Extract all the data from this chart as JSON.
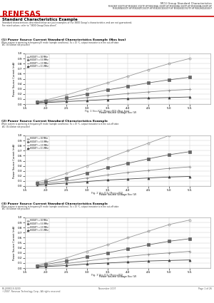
{
  "title_right": "MCU Group Standard Characteristics",
  "subtitle_chips_line1": "M38280F XXXTP-HP M38280C XXXTP-HP M38280AL XXXFP-HP M38280AS XXXTP-HP M38280NA XXXFP-HP",
  "subtitle_chips_line2": "M38280NXXXTP-HP M38280PCXXXTP-HP M38280CBXXXTP-HP M38280DCXXXTP-HP M38280D4XXXHP",
  "section_title": "Standard Characteristics Example",
  "section_desc1": "Standard characteristics described below are just examples of the 3800 Group's characteristics and are not guaranteed.",
  "section_desc2": "For rated values, refer to \"3800 Group Data sheet\".",
  "chart1_title": "(1) Power Source Current Standard Characteristics Example (Nos bus)",
  "chart1_subtitle": "When system is operating in frequency(f) mode (sample conditions), Ta = 25 °C, output transistor is in the cut-off state",
  "chart1_sub2": "ATC: Oscillation not provided",
  "chart1_xlabel": "Power Source Voltage Vcc (V)",
  "chart1_ylabel": "Power Source Current (mA)",
  "chart1_caption": "Fig. 1 Vcc-ICC (Rsys=0Ω) (Nos bus)",
  "chart2_title": "(2) Power Source Current Standard Characteristics Example",
  "chart2_subtitle": "When system is operating in frequency(f) mode (sample conditions), Ta = 25 °C, output transistor is in the cut-off state",
  "chart2_sub2": "ATC: Oscillation not provided",
  "chart2_xlabel": "Power Source Voltage Vcc (V)",
  "chart2_ylabel": "Power Source Current (mA)",
  "chart2_caption": "Fig. 2 Vcc-ICC (Rsys=0Ω)",
  "chart3_title": "(3) Power Source Current Standard Characteristics Example",
  "chart3_subtitle": "When system is operating in frequency(f) mode (sample conditions), Ta = 25 °C, output transistor is in the cut-off state",
  "chart3_sub2": "ATC: Oscillation not provided",
  "chart3_xlabel": "Power Source Voltage Vcc (V)",
  "chart3_ylabel": "Power Source Current (mA)",
  "chart3_caption": "Fig. 3 Vcc-ICC (Rsys=0Ω)",
  "footer_left1": "RE-J008119-0200",
  "footer_left2": "©2007. Renesas Technology Corp., All rights reserved.",
  "footer_center": "November 2007",
  "footer_right": "Page 1 of 26",
  "vcc_values": [
    1.8,
    2.0,
    2.5,
    3.0,
    3.5,
    4.0,
    4.5,
    5.0,
    5.5
  ],
  "chart1_series": [
    {
      "label": "f(XOUT) = 10 MHz",
      "marker": "o",
      "color": "#999999",
      "data": [
        0.05,
        0.08,
        0.18,
        0.3,
        0.42,
        0.55,
        0.68,
        0.8,
        0.9
      ]
    },
    {
      "label": "f(XOUT) = 5.0 MHz",
      "marker": "s",
      "color": "#666666",
      "data": [
        0.04,
        0.06,
        0.12,
        0.2,
        0.28,
        0.35,
        0.42,
        0.48,
        0.53
      ]
    },
    {
      "label": "f(XOUT) = 2.0 MHz",
      "marker": "+",
      "color": "#888888",
      "data": [
        0.03,
        0.04,
        0.08,
        0.13,
        0.17,
        0.21,
        0.24,
        0.27,
        0.29
      ]
    },
    {
      "label": "f(XOUT) = 0.1 MHz",
      "marker": "^",
      "color": "#444444",
      "data": [
        0.02,
        0.03,
        0.05,
        0.07,
        0.09,
        0.11,
        0.12,
        0.13,
        0.14
      ]
    }
  ],
  "chart2_series": [
    {
      "label": "f(XOUT) = 10 MHz",
      "marker": "o",
      "color": "#999999",
      "data": [
        0.08,
        0.12,
        0.25,
        0.4,
        0.55,
        0.7,
        0.85,
        1.0,
        1.1
      ]
    },
    {
      "label": "f(XOUT) = 5.0 MHz",
      "marker": "s",
      "color": "#666666",
      "data": [
        0.05,
        0.08,
        0.16,
        0.26,
        0.36,
        0.45,
        0.54,
        0.62,
        0.68
      ]
    },
    {
      "label": "f(XOUT) = 2.0 MHz",
      "marker": "+",
      "color": "#888888",
      "data": [
        0.03,
        0.05,
        0.1,
        0.16,
        0.22,
        0.27,
        0.31,
        0.35,
        0.38
      ]
    },
    {
      "label": "f(XOUT) = 0.1 MHz",
      "marker": "^",
      "color": "#444444",
      "data": [
        0.02,
        0.03,
        0.06,
        0.09,
        0.12,
        0.14,
        0.16,
        0.18,
        0.19
      ]
    }
  ],
  "chart3_series": [
    {
      "label": "f(XOUT) = 10 MHz",
      "marker": "o",
      "color": "#999999",
      "data": [
        0.06,
        0.1,
        0.2,
        0.33,
        0.46,
        0.6,
        0.73,
        0.86,
        0.95
      ]
    },
    {
      "label": "f(XOUT) = 5.0 MHz",
      "marker": "s",
      "color": "#666666",
      "data": [
        0.04,
        0.07,
        0.14,
        0.22,
        0.3,
        0.38,
        0.46,
        0.53,
        0.58
      ]
    },
    {
      "label": "f(XOUT) = 2.0 MHz",
      "marker": "+",
      "color": "#888888",
      "data": [
        0.03,
        0.04,
        0.09,
        0.14,
        0.19,
        0.23,
        0.27,
        0.3,
        0.33
      ]
    },
    {
      "label": "f(XOUT) = 0.1 MHz",
      "marker": "^",
      "color": "#444444",
      "data": [
        0.02,
        0.03,
        0.05,
        0.08,
        0.1,
        0.12,
        0.14,
        0.15,
        0.16
      ]
    }
  ],
  "ylim": [
    0,
    1.0
  ],
  "xlim": [
    1.5,
    6.0
  ],
  "xticks": [
    1.5,
    2.0,
    2.5,
    3.0,
    3.5,
    4.0,
    4.5,
    5.0,
    5.5
  ],
  "yticks": [
    0.0,
    0.1,
    0.2,
    0.3,
    0.4,
    0.5,
    0.6,
    0.7,
    0.8,
    0.9,
    1.0
  ],
  "bg_color": "#ffffff",
  "grid_color": "#cccccc",
  "border_color": "#aaaaaa"
}
